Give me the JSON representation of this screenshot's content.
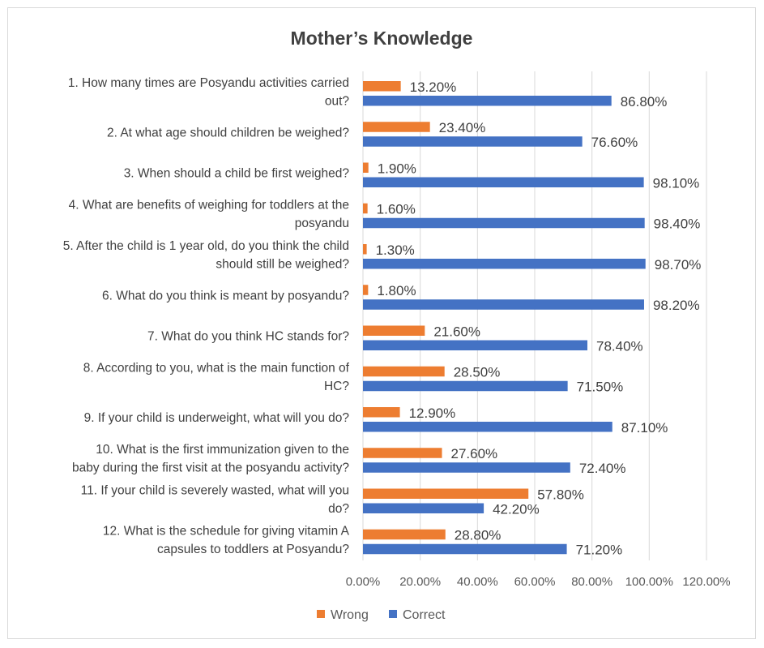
{
  "chart_data": {
    "type": "bar",
    "orientation": "horizontal",
    "title": "Mother’s Knowledge",
    "categories": [
      [
        "1. How many times are Posyandu activities carried",
        "out?"
      ],
      [
        "2. At what age should children be weighed?"
      ],
      [
        "3. When should a child be first weighed?"
      ],
      [
        "4.  What are benefits of weighing for toddlers at the",
        "posyandu"
      ],
      [
        "5. After the child is 1 year old, do you think the child",
        "should still be weighed?"
      ],
      [
        "6. What do you think is meant by posyandu?"
      ],
      [
        "7. What do you think HC stands for?"
      ],
      [
        "8. According to you, what is the main function of",
        "HC?"
      ],
      [
        "9. If your child is underweight, what will you do?"
      ],
      [
        "10.  What is the first immunization given to the",
        "baby during the first visit at the posyandu activity?"
      ],
      [
        "11. If your child is severely wasted, what will you",
        "do?"
      ],
      [
        "12. What is the schedule for giving vitamin A",
        "capsules to toddlers at Posyandu?"
      ]
    ],
    "series": [
      {
        "name": "Wrong",
        "color": "#ed7d31",
        "values": [
          13.2,
          23.4,
          1.9,
          1.6,
          1.3,
          1.8,
          21.6,
          28.5,
          12.9,
          27.6,
          57.8,
          28.8
        ],
        "labels": [
          "13.20%",
          "23.40%",
          "1.90%",
          "1.60%",
          "1.30%",
          "1.80%",
          "21.60%",
          "28.50%",
          "12.90%",
          "27.60%",
          "57.80%",
          "28.80%"
        ]
      },
      {
        "name": "Correct",
        "color": "#4472c4",
        "values": [
          86.8,
          76.6,
          98.1,
          98.4,
          98.7,
          98.2,
          78.4,
          71.5,
          87.1,
          72.4,
          42.2,
          71.2
        ],
        "labels": [
          "86.80%",
          "76.60%",
          "98.10%",
          "98.40%",
          "98.70%",
          "98.20%",
          "78.40%",
          "71.50%",
          "87.10%",
          "72.40%",
          "42.20%",
          "71.20%"
        ]
      }
    ],
    "xlim": [
      0,
      120
    ],
    "xticks": [
      0,
      20,
      40,
      60,
      80,
      100,
      120
    ],
    "xtick_labels": [
      "0.00%",
      "20.00%",
      "40.00%",
      "60.00%",
      "80.00%",
      "100.00%",
      "120.00%"
    ],
    "grid": true,
    "legend": "bottom"
  }
}
